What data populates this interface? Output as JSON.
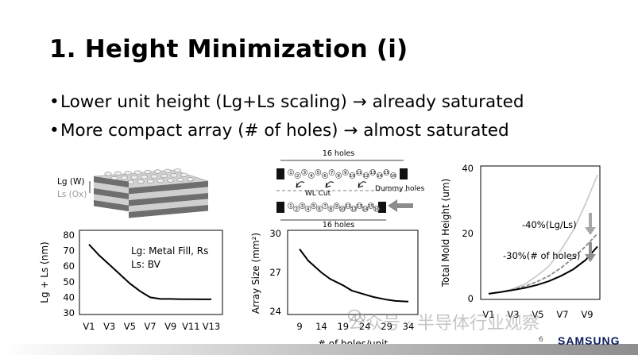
{
  "slide": {
    "title": "1. Height Minimization (i)",
    "bullets": [
      "Lower unit height (Lg+Ls scaling) → already saturated",
      "More compact array (# of holes) → almost saturated"
    ],
    "page_number": "6",
    "brand": "SAMSUNG",
    "watermark": "公众号 · 半导体行业观察"
  },
  "stack_diagram": {
    "label_lg": "Lg (W)",
    "label_ls": "Ls (Ox)",
    "colors": {
      "dark": "#6e6e6e",
      "light": "#cfcfcf",
      "top": "#c9c9c9"
    }
  },
  "array_diagram": {
    "top_label": "16 holes",
    "bottom_label": "16 holes",
    "wl_cut_label": "WL Cut",
    "dummy_label": "Dummy holes",
    "hole_numbers": [
      "1",
      "2",
      "3",
      "4",
      "5",
      "6",
      "7",
      "8",
      "9",
      "10",
      "11",
      "12",
      "13",
      "14",
      "15",
      "16"
    ]
  },
  "chart_data": [
    {
      "type": "line",
      "ylabel": "Lg + Ls (nm)",
      "xlabel": "",
      "categories": [
        "V1",
        "V3",
        "V5",
        "V7",
        "V9",
        "V11",
        "V13"
      ],
      "x": [
        1,
        2,
        3,
        4,
        5,
        6,
        7,
        8,
        9,
        10,
        11,
        12,
        13
      ],
      "series": [
        {
          "values": [
            74,
            67,
            61,
            55,
            49,
            44,
            40,
            39,
            39,
            38.8,
            38.8,
            38.7,
            38.7
          ]
        }
      ],
      "ylim": [
        30,
        80
      ],
      "yticks": [
        "30",
        "40",
        "50",
        "60",
        "70",
        "80"
      ],
      "annotations": [
        "Lg: Metal Fill, Rs",
        "Ls: BV"
      ],
      "grid": false
    },
    {
      "type": "line",
      "ylabel": "Array Size (mm²)",
      "xlabel": "# of holes/unit",
      "x": [
        9,
        11,
        14,
        16,
        19,
        21,
        24,
        26,
        29,
        31,
        34
      ],
      "xticks": [
        "9",
        "14",
        "19",
        "24",
        "29",
        "34"
      ],
      "series": [
        {
          "values": [
            28.8,
            27.9,
            27,
            26.5,
            26,
            25.6,
            25.3,
            25.1,
            24.9,
            24.8,
            24.75
          ]
        }
      ],
      "ylim": [
        24,
        30
      ],
      "yticks": [
        "24",
        "27",
        "30"
      ],
      "grid": false
    },
    {
      "type": "line",
      "ylabel": "Total Mold Height (um)",
      "xlabel": "",
      "categories": [
        "V1",
        "V3",
        "V5",
        "V7",
        "V9"
      ],
      "x": [
        1,
        2,
        3,
        4,
        5,
        6,
        7,
        8,
        9,
        10
      ],
      "series": [
        {
          "color": "#cccccc",
          "values": [
            1.5,
            2,
            3,
            4.5,
            7,
            10,
            15,
            21,
            29,
            38
          ]
        },
        {
          "color": "#8a8a8a",
          "values": [
            1.5,
            2,
            2.8,
            3.8,
            5.2,
            7,
            9.5,
            12.5,
            16,
            20
          ]
        },
        {
          "color": "#000000",
          "values": [
            1.5,
            2,
            2.6,
            3.3,
            4.2,
            5.4,
            7,
            9,
            11.8,
            16
          ]
        }
      ],
      "ylim": [
        0,
        40
      ],
      "yticks": [
        "0",
        "20",
        "40"
      ],
      "annotations": [
        "-40%(Lg/Ls)",
        "-30%(# of holes)"
      ],
      "grid": false
    }
  ]
}
